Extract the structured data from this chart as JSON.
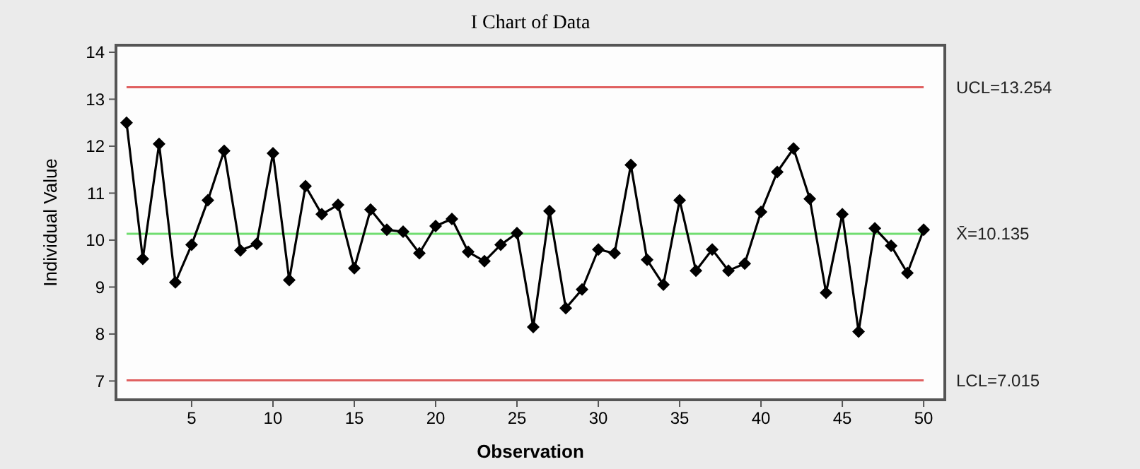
{
  "chart_data": {
    "type": "line",
    "title": "I Chart of Data",
    "xlabel": "Observation",
    "ylabel": "Individual Value",
    "x": [
      1,
      2,
      3,
      4,
      5,
      6,
      7,
      8,
      9,
      10,
      11,
      12,
      13,
      14,
      15,
      16,
      17,
      18,
      19,
      20,
      21,
      22,
      23,
      24,
      25,
      26,
      27,
      28,
      29,
      30,
      31,
      32,
      33,
      34,
      35,
      36,
      37,
      38,
      39,
      40,
      41,
      42,
      43,
      44,
      45,
      46,
      47,
      48,
      49,
      50
    ],
    "series": [
      {
        "color": "#000000",
        "values": [
          12.5,
          9.6,
          12.05,
          9.1,
          9.9,
          10.85,
          11.9,
          9.78,
          9.92,
          11.85,
          9.15,
          11.15,
          10.55,
          10.75,
          9.4,
          10.65,
          10.22,
          10.18,
          9.72,
          10.3,
          10.45,
          9.75,
          9.55,
          9.9,
          10.15,
          8.15,
          10.62,
          8.55,
          8.95,
          9.8,
          9.72,
          11.6,
          9.58,
          9.05,
          10.85,
          9.35,
          9.8,
          9.35,
          9.5,
          10.6,
          11.45,
          11.95,
          10.88,
          8.88,
          10.55,
          8.05,
          10.25,
          9.88,
          9.3,
          10.22
        ]
      }
    ],
    "xlim": [
      0.35,
      51.3
    ],
    "xticks": [
      5,
      10,
      15,
      20,
      25,
      30,
      35,
      40,
      45,
      50
    ],
    "ylim": [
      6.6,
      14.15
    ],
    "yticks": [
      7,
      8,
      9,
      10,
      11,
      12,
      13,
      14
    ],
    "ref_lines": [
      {
        "axis": "y",
        "value": 13.254,
        "label": "UCL=13.254",
        "color": "#e06060"
      },
      {
        "axis": "y",
        "value": 10.135,
        "label": "X̄=10.135",
        "color": "#70dd70"
      },
      {
        "axis": "y",
        "value": 7.015,
        "label": "LCL=7.015",
        "color": "#e06060"
      }
    ],
    "marker": "diamond",
    "line_style": "solid"
  }
}
